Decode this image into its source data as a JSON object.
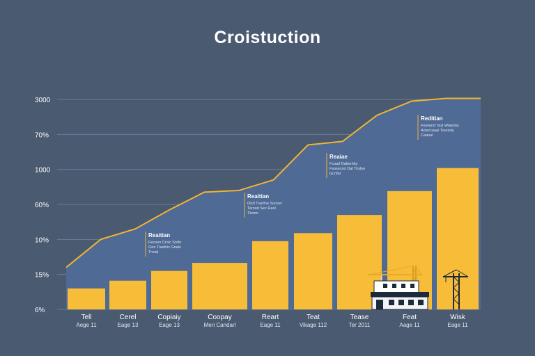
{
  "chart_data": {
    "type": "bar",
    "title": "Croistuction",
    "y_tick_labels": [
      "6%",
      "15%",
      "10%",
      "60%",
      "1000",
      "70%",
      "3000"
    ],
    "categories": [
      {
        "label": "Tell",
        "sublabel": "Aege 11"
      },
      {
        "label": "Cerel",
        "sublabel": "Eage 13"
      },
      {
        "label": "Copiaiy",
        "sublabel": "Eage 13"
      },
      {
        "label": "Coopay",
        "sublabel": "Meri Candarl"
      },
      {
        "label": "Reart",
        "sublabel": "Eage 11"
      },
      {
        "label": "Teat",
        "sublabel": "Vikage 112"
      },
      {
        "label": "Tease",
        "sublabel": "Ter 2011"
      },
      {
        "label": "Feat",
        "sublabel": "Aage 11"
      },
      {
        "label": "Wisk",
        "sublabel": "Eage 11"
      }
    ],
    "grid_levels": [
      0,
      1,
      2,
      3,
      4,
      5,
      6
    ],
    "bar_levels": [
      0.6,
      0.82,
      1.1,
      1.33,
      1.95,
      2.18,
      2.7,
      3.38,
      4.04
    ],
    "line_levels": [
      1.2,
      2.0,
      2.3,
      2.85,
      3.35,
      3.4,
      3.7,
      4.7,
      4.8,
      5.55,
      5.95,
      6.03,
      6.03
    ],
    "annotations": [
      {
        "title": "Reaitian",
        "lines": [
          "Feceen Crolc Sorfe",
          "Oen Trasfcic Gnals",
          "Trroal"
        ]
      },
      {
        "title": "Reaitian",
        "lines": [
          "Oicll Tranfne Soceet",
          "Tarnod Sec Raol",
          "Ttomn"
        ]
      },
      {
        "title": "Reaiae",
        "lines": [
          "Fcoarl Datterhity",
          "Fsosecrol Dal Tirsloe",
          "Gcnfal"
        ]
      },
      {
        "title": "Reditian",
        "lines": [
          "Fioeiand Tasl Wiaeshy",
          "Aotercaaal Tourarty",
          "Caaoul"
        ]
      }
    ],
    "ylim": [
      0,
      6
    ],
    "grid": true,
    "colors": {
      "background": "#4a5a70",
      "area": "#4e6a95",
      "line": "#f2b534",
      "bar": "#f7bc38",
      "grid": "#6a7c94",
      "text": "#ffffff"
    }
  }
}
